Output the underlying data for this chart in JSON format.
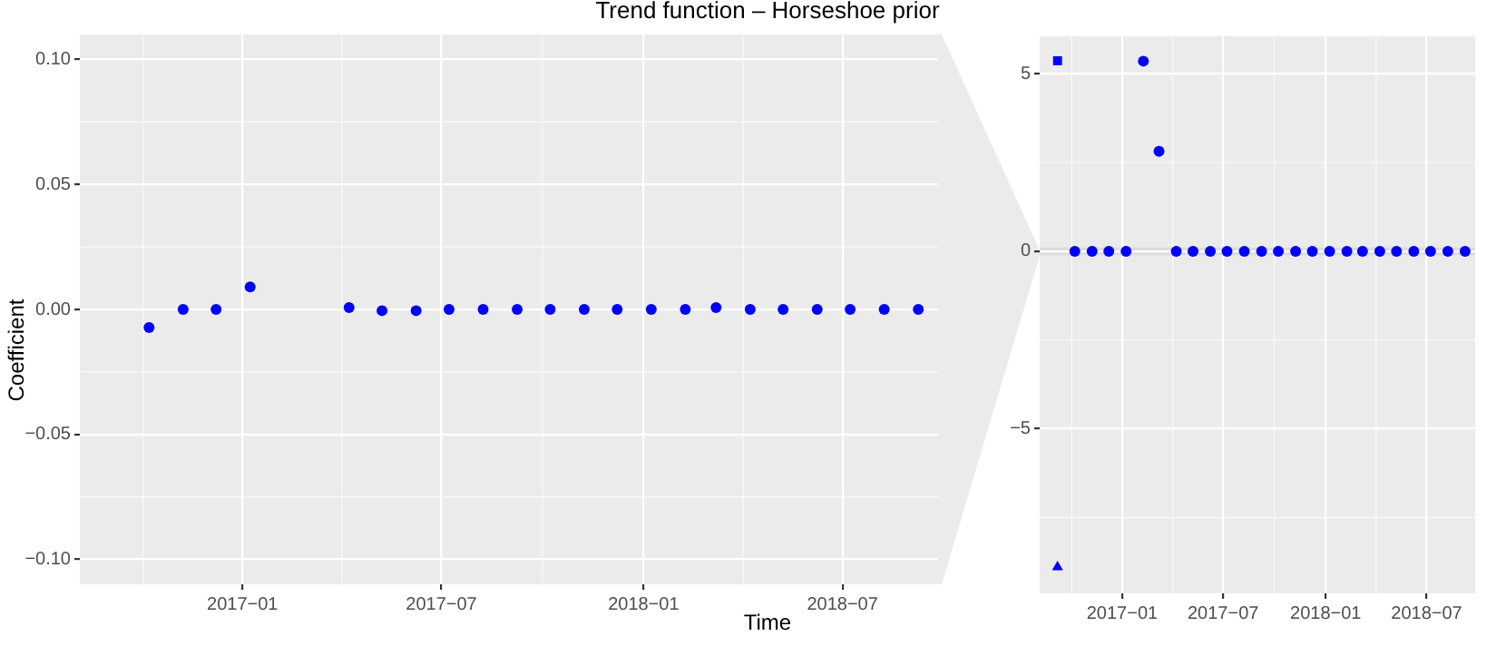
{
  "chart_data": [
    {
      "type": "scatter",
      "title": "Trend function – Horseshoe prior",
      "xlabel": "Time",
      "ylabel": "Coefficient",
      "x": [
        "2016-10-08",
        "2016-11-08",
        "2016-12-08",
        "2017-01-08",
        "2017-02-08",
        "2017-03-08",
        "2017-04-08",
        "2017-05-08",
        "2017-06-08",
        "2017-07-08",
        "2017-08-08",
        "2017-09-08",
        "2017-10-08",
        "2017-11-08",
        "2017-12-08",
        "2018-01-08",
        "2018-02-08",
        "2018-03-08",
        "2018-04-08",
        "2018-05-08",
        "2018-06-08",
        "2018-07-08",
        "2018-08-08",
        "2018-09-08"
      ],
      "series": [
        {
          "color": "#0000ff",
          "marker": "circle",
          "values": [
            -0.0073,
            0,
            0,
            0.009,
            null,
            null,
            0.0007,
            -0.0005,
            -0.0005,
            0,
            0,
            0,
            0,
            0,
            0,
            0,
            0,
            0.0007,
            0,
            0,
            0,
            0,
            0,
            0
          ]
        }
      ],
      "xlim": [
        "2016-08-06",
        "2018-09-26"
      ],
      "xticks": [
        {
          "value": "2017-01-01",
          "label": "2017−01"
        },
        {
          "value": "2017-07-01",
          "label": "2017−07"
        },
        {
          "value": "2018-01-01",
          "label": "2018−01"
        },
        {
          "value": "2018-07-01",
          "label": "2018−07"
        }
      ],
      "ylim": [
        -0.11,
        0.11
      ],
      "yticks": [
        {
          "value": -0.1,
          "label": "−0.10"
        },
        {
          "value": -0.05,
          "label": "−0.05"
        },
        {
          "value": 0,
          "label": "0.00"
        },
        {
          "value": 0.05,
          "label": "0.05"
        },
        {
          "value": 0.1,
          "label": "0.10"
        }
      ],
      "grid": true,
      "legend": false
    },
    {
      "type": "scatter",
      "x": [
        "2016-10-08",
        "2016-11-08",
        "2016-12-08",
        "2017-01-08",
        "2017-02-08",
        "2017-03-08",
        "2017-04-08",
        "2017-05-08",
        "2017-06-08",
        "2017-07-08",
        "2017-08-08",
        "2017-09-08",
        "2017-10-08",
        "2017-11-08",
        "2017-12-08",
        "2018-01-08",
        "2018-02-08",
        "2018-03-08",
        "2018-04-08",
        "2018-05-08",
        "2018-06-08",
        "2018-07-08",
        "2018-08-08",
        "2018-09-08"
      ],
      "series": [
        {
          "color": "#0000ff",
          "marker": "circle",
          "values": [
            0,
            0,
            0,
            0,
            5.36,
            2.82,
            0,
            0,
            0,
            0,
            0,
            0,
            0,
            0,
            0,
            0,
            0,
            0,
            0,
            0,
            0,
            0,
            0,
            0
          ]
        },
        {
          "color": "#0000ff",
          "marker": "square",
          "x": [
            "2016-09-07"
          ],
          "values": [
            5.37
          ]
        },
        {
          "color": "#0000ff",
          "marker": "triangle",
          "x": [
            "2016-09-07"
          ],
          "values": [
            -8.9
          ]
        }
      ],
      "xlim": [
        "2016-08-06",
        "2018-09-26"
      ],
      "xticks": [
        {
          "value": "2017-01-01",
          "label": "2017−01"
        },
        {
          "value": "2017-07-01",
          "label": "2017−07"
        },
        {
          "value": "2018-01-01",
          "label": "2018−01"
        },
        {
          "value": "2018-07-01",
          "label": "2018−07"
        }
      ],
      "ylim": [
        -9.64,
        6.06
      ],
      "yticks": [
        {
          "value": -5,
          "label": "−5"
        },
        0,
        5
      ],
      "bands": [
        {
          "axis": "y",
          "from": -0.11,
          "to": 0.11,
          "color": "#dcdcdc"
        }
      ],
      "grid": true,
      "legend": false
    }
  ]
}
